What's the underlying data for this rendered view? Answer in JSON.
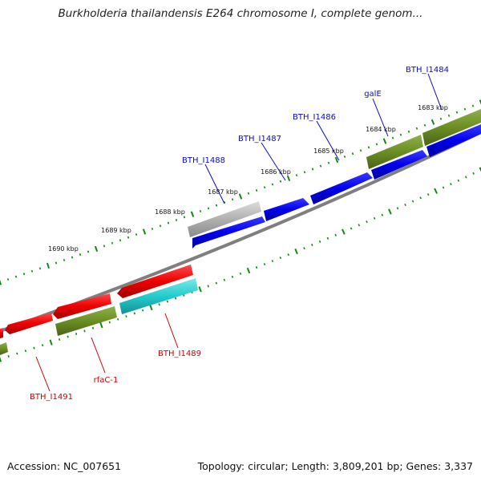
{
  "title": "Burkholderia thailandensis E264 chromosome I, complete genom...",
  "accession": "Accession: NC_007651",
  "topology": "Topology: circular; Length: 3,809,201 bp; Genes: 3,337",
  "colors": {
    "backbone": "#7f7f7f",
    "cds_forward": "#0000ee",
    "cds_reverse": "#ee0000",
    "rna": "#6b8e23",
    "pseudo": "#b0b0b0",
    "other": "#22cccc",
    "tick": "#118811",
    "label_forward": "#0a0acc",
    "label_reverse": "#cc0000"
  },
  "ticks": [
    "1683 kbp",
    "1684 kbp",
    "1685 kbp",
    "1686 kbp",
    "1687 kbp",
    "1688 kbp",
    "1689 kbp",
    "1690 kbp"
  ],
  "forward_labels": [
    "BTH_I1484",
    "galE",
    "BTH_I1486",
    "BTH_I1487",
    "BTH_I1488"
  ],
  "reverse_labels": [
    "BTH_I1489",
    "rfaC-1",
    "BTH_I1491"
  ]
}
